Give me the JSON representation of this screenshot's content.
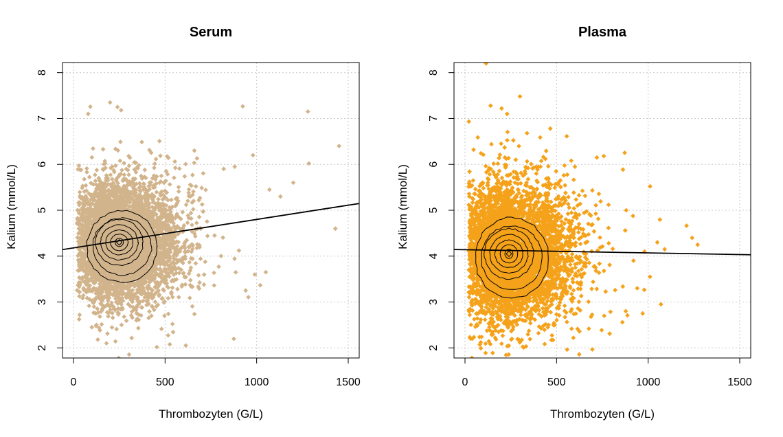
{
  "chart_data": [
    {
      "type": "scatter",
      "title": "Serum",
      "xlabel": "Thrombozyten (G/L)",
      "ylabel": "Kalium (mmol/L)",
      "xlim": [
        -60,
        1560
      ],
      "ylim": [
        1.78,
        8.22
      ],
      "xticks": [
        "0",
        "500",
        "1000",
        "1500"
      ],
      "yticks": [
        "2",
        "3",
        "4",
        "5",
        "6",
        "7",
        "8"
      ],
      "grid": true,
      "point_color": "#d2b48c",
      "cloud": {
        "center": [
          250,
          4.3
        ],
        "sd": [
          110,
          0.62
        ],
        "n": 5200
      },
      "outliers": [
        [
          1280,
          7.15
        ],
        [
          1450,
          6.4
        ],
        [
          1285,
          6.02
        ],
        [
          1430,
          4.6
        ],
        [
          980,
          6.2
        ],
        [
          1070,
          5.45
        ],
        [
          1130,
          5.3
        ],
        [
          1050,
          3.65
        ],
        [
          990,
          3.6
        ],
        [
          940,
          3.25
        ],
        [
          1200,
          5.6
        ],
        [
          660,
          6.3
        ],
        [
          880,
          5.95
        ],
        [
          820,
          5.9
        ],
        [
          200,
          7.35
        ],
        [
          240,
          7.25
        ],
        [
          260,
          7.18
        ],
        [
          180,
          2.1
        ],
        [
          100,
          2.45
        ],
        [
          80,
          7.1
        ]
      ],
      "regression": {
        "intercept": 4.18,
        "slope": 0.00062
      },
      "contour_levels": [
        [
          22,
          0.09
        ],
        [
          48,
          0.18
        ],
        [
          74,
          0.27
        ],
        [
          102,
          0.38
        ],
        [
          130,
          0.5
        ],
        [
          160,
          0.62
        ],
        [
          192,
          0.78
        ]
      ]
    },
    {
      "type": "scatter",
      "title": "Plasma",
      "xlabel": "Thrombozyten (G/L)",
      "ylabel": "Kalium (mmol/L)",
      "xlim": [
        -60,
        1560
      ],
      "ylim": [
        1.78,
        8.22
      ],
      "xticks": [
        "0",
        "500",
        "1000",
        "1500"
      ],
      "yticks": [
        "2",
        "3",
        "4",
        "5",
        "6",
        "7",
        "8"
      ],
      "grid": true,
      "point_color": "#f5a21b",
      "cloud": {
        "center": [
          240,
          4.05
        ],
        "sd": [
          120,
          0.68
        ],
        "n": 5600
      },
      "outliers": [
        [
          115,
          8.2
        ],
        [
          300,
          7.48
        ],
        [
          140,
          7.28
        ],
        [
          200,
          7.22
        ],
        [
          230,
          7.1
        ],
        [
          720,
          6.15
        ],
        [
          880,
          5.0
        ],
        [
          980,
          4.1
        ],
        [
          1090,
          4.15
        ],
        [
          1240,
          4.4
        ],
        [
          1270,
          4.25
        ],
        [
          1050,
          4.3
        ],
        [
          940,
          3.3
        ],
        [
          970,
          2.75
        ],
        [
          1070,
          2.95
        ],
        [
          1010,
          3.55
        ],
        [
          760,
          2.7
        ],
        [
          600,
          5.95
        ],
        [
          920,
          3.9
        ],
        [
          150,
          2.35
        ]
      ],
      "regression": {
        "intercept": 4.14,
        "slope": -7e-05
      },
      "contour_levels": [
        [
          22,
          0.1
        ],
        [
          48,
          0.2
        ],
        [
          76,
          0.3
        ],
        [
          104,
          0.42
        ],
        [
          134,
          0.55
        ],
        [
          166,
          0.7
        ],
        [
          200,
          0.88
        ]
      ]
    }
  ]
}
